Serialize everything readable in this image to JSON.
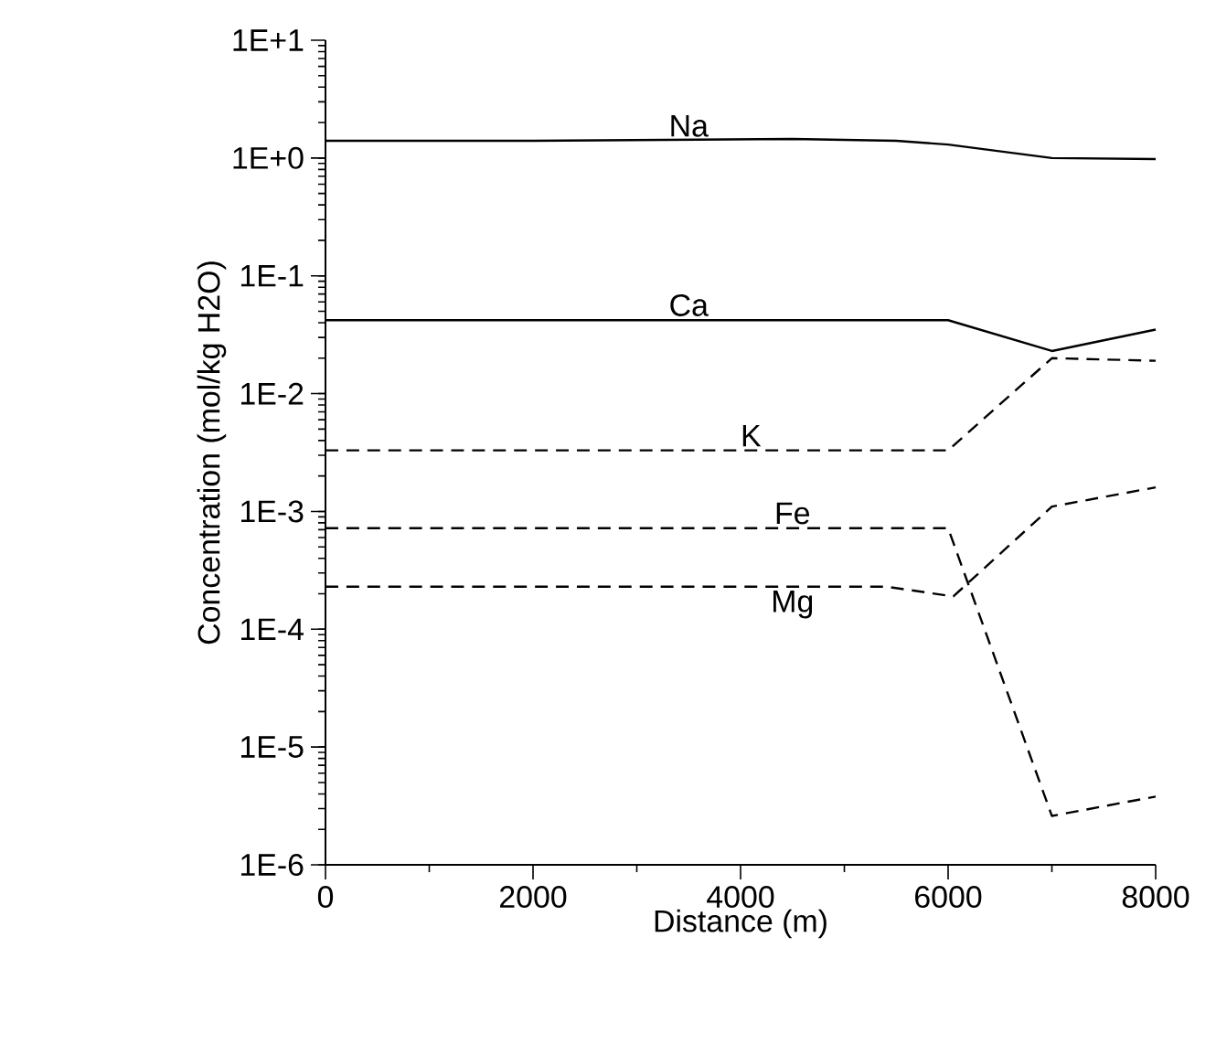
{
  "chart_data": {
    "type": "line",
    "xlabel": "Distance (m)",
    "ylabel": "Concentration (mol/kg H2O)",
    "log": "y",
    "grid": false,
    "legend": false,
    "marker": "none",
    "xlim": [
      0,
      8000
    ],
    "xticks": [
      0,
      2000,
      4000,
      6000,
      8000
    ],
    "ylim": [
      1e-06,
      10
    ],
    "yticks": [
      {
        "value": 1e-06,
        "label": "1E-6"
      },
      {
        "value": 1e-05,
        "label": "1E-5"
      },
      {
        "value": 0.0001,
        "label": "1E-4"
      },
      {
        "value": 0.001,
        "label": "1E-3"
      },
      {
        "value": 0.01,
        "label": "1E-2"
      },
      {
        "value": 0.1,
        "label": "1E-1"
      },
      {
        "value": 1,
        "label": "1E+0"
      },
      {
        "value": 10,
        "label": "1E+1"
      }
    ],
    "series": [
      {
        "name": "Na",
        "color": "#000000",
        "line_style": "solid",
        "x": [
          0,
          2000,
          4500,
          5500,
          6000,
          7000,
          8000
        ],
        "values": [
          1.4,
          1.4,
          1.45,
          1.4,
          1.3,
          1.0,
          0.98
        ]
      },
      {
        "name": "Ca",
        "color": "#000000",
        "line_style": "solid",
        "x": [
          0,
          6000,
          7000,
          8000
        ],
        "values": [
          0.042,
          0.042,
          0.023,
          0.035
        ]
      },
      {
        "name": "K",
        "color": "#000000",
        "line_style": "dashed",
        "x": [
          0,
          6000,
          7000,
          8000
        ],
        "values": [
          0.0033,
          0.0033,
          0.02,
          0.019
        ]
      },
      {
        "name": "Fe",
        "color": "#000000",
        "line_style": "dashed",
        "x": [
          0,
          6000,
          7000,
          8000
        ],
        "values": [
          0.00072,
          0.00072,
          2.6e-06,
          3.8e-06
        ]
      },
      {
        "name": "Mg",
        "color": "#000000",
        "line_style": "dashed",
        "x": [
          0,
          5400,
          6050,
          7000,
          8000
        ],
        "values": [
          0.00023,
          0.00023,
          0.00019,
          0.0011,
          0.0016
        ]
      }
    ]
  }
}
